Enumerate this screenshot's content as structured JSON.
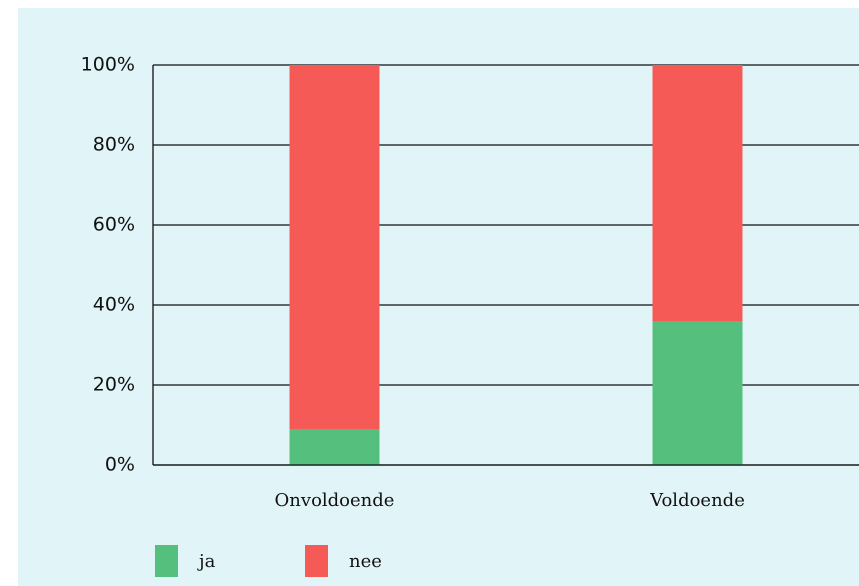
{
  "chart_data": {
    "type": "stacked_bar",
    "categories": [
      "Onvoldoende",
      "Voldoende"
    ],
    "series": [
      {
        "name": "ja",
        "color": "#55c07e",
        "values": [
          9,
          36
        ]
      },
      {
        "name": "nee",
        "color": "#f65a57",
        "values": [
          91,
          64
        ]
      }
    ],
    "ylim": [
      0,
      100
    ],
    "yticks": [
      {
        "value": 0,
        "label": "0%"
      },
      {
        "value": 20,
        "label": "20%"
      },
      {
        "value": 40,
        "label": "40%"
      },
      {
        "value": 60,
        "label": "60%"
      },
      {
        "value": 80,
        "label": "80%"
      },
      {
        "value": 100,
        "label": "100%"
      }
    ],
    "grid": true,
    "legend": "bottom"
  }
}
